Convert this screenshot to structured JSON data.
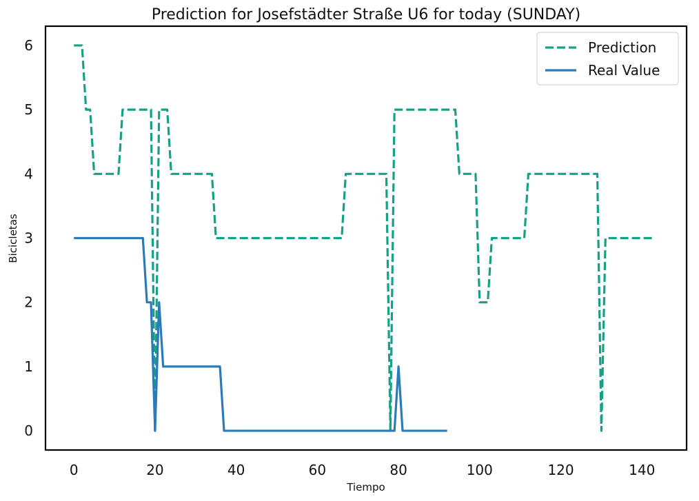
{
  "chart_data": {
    "type": "line",
    "title": "Prediction for Josefstädter Straße U6 for today (SUNDAY)",
    "xlabel": "Tiempo",
    "ylabel": "Bicicletas",
    "xlim": [
      -7,
      151
    ],
    "ylim": [
      -0.3,
      6.3
    ],
    "xticks": [
      0,
      20,
      40,
      60,
      80,
      100,
      120,
      140
    ],
    "yticks": [
      0,
      1,
      2,
      3,
      4,
      5,
      6
    ],
    "grid": false,
    "legend_position": "top-right",
    "series": [
      {
        "name": "Prediction",
        "color": "#16a085",
        "style": "dashed",
        "x": [
          0,
          1,
          2,
          3,
          4,
          5,
          6,
          7,
          8,
          9,
          10,
          11,
          12,
          13,
          14,
          15,
          16,
          17,
          18,
          19,
          20,
          21,
          22,
          23,
          24,
          25,
          26,
          27,
          28,
          29,
          30,
          31,
          32,
          33,
          34,
          35,
          36,
          37,
          38,
          39,
          40,
          41,
          42,
          43,
          44,
          45,
          46,
          47,
          48,
          49,
          50,
          51,
          52,
          53,
          54,
          55,
          56,
          57,
          58,
          59,
          60,
          61,
          62,
          63,
          64,
          65,
          66,
          67,
          68,
          69,
          70,
          71,
          72,
          73,
          74,
          75,
          76,
          77,
          78,
          79,
          80,
          81,
          82,
          83,
          84,
          85,
          86,
          87,
          88,
          89,
          90,
          91,
          92,
          93,
          94,
          95,
          96,
          97,
          98,
          99,
          100,
          101,
          102,
          103,
          104,
          105,
          106,
          107,
          108,
          109,
          110,
          111,
          112,
          113,
          114,
          115,
          116,
          117,
          118,
          119,
          120,
          121,
          122,
          123,
          124,
          125,
          126,
          127,
          128,
          129,
          130,
          131,
          132,
          133,
          134,
          135,
          136,
          137,
          138,
          139,
          140,
          141,
          142,
          143
        ],
        "values": [
          6,
          6,
          6,
          5,
          5,
          4,
          4,
          4,
          4,
          4,
          4,
          4,
          5,
          5,
          5,
          5,
          5,
          5,
          5,
          5,
          0,
          5,
          5,
          5,
          4,
          4,
          4,
          4,
          4,
          4,
          4,
          4,
          4,
          4,
          4,
          3,
          3,
          3,
          3,
          3,
          3,
          3,
          3,
          3,
          3,
          3,
          3,
          3,
          3,
          3,
          3,
          3,
          3,
          3,
          3,
          3,
          3,
          3,
          3,
          3,
          3,
          3,
          3,
          3,
          3,
          3,
          3,
          4,
          4,
          4,
          4,
          4,
          4,
          4,
          4,
          4,
          4,
          4,
          0,
          5,
          5,
          5,
          5,
          5,
          5,
          5,
          5,
          5,
          5,
          5,
          5,
          5,
          5,
          5,
          5,
          4,
          4,
          4,
          4,
          4,
          2,
          2,
          2,
          3,
          3,
          3,
          3,
          3,
          3,
          3,
          3,
          3,
          4,
          4,
          4,
          4,
          4,
          4,
          4,
          4,
          4,
          4,
          4,
          4,
          4,
          4,
          4,
          4,
          4,
          4,
          0,
          3,
          3,
          3,
          3,
          3,
          3,
          3,
          3,
          3,
          3,
          3,
          3,
          3
        ]
      },
      {
        "name": "Real Value",
        "color": "#2b7bb9",
        "style": "solid",
        "x": [
          0,
          1,
          2,
          3,
          4,
          5,
          6,
          7,
          8,
          9,
          10,
          11,
          12,
          13,
          14,
          15,
          16,
          17,
          18,
          19,
          20,
          21,
          22,
          23,
          24,
          25,
          26,
          27,
          28,
          29,
          30,
          31,
          32,
          33,
          34,
          35,
          36,
          37,
          38,
          39,
          40,
          41,
          42,
          43,
          44,
          45,
          46,
          47,
          48,
          49,
          50,
          51,
          52,
          53,
          54,
          55,
          56,
          57,
          58,
          59,
          60,
          61,
          62,
          63,
          64,
          65,
          66,
          67,
          68,
          69,
          70,
          71,
          72,
          73,
          74,
          75,
          76,
          77,
          78,
          79,
          80,
          81,
          82,
          83,
          84,
          85,
          86,
          87,
          88,
          89,
          90,
          91,
          92
        ],
        "values": [
          3,
          3,
          3,
          3,
          3,
          3,
          3,
          3,
          3,
          3,
          3,
          3,
          3,
          3,
          3,
          3,
          3,
          3,
          2,
          2,
          0,
          2,
          1,
          1,
          1,
          1,
          1,
          1,
          1,
          1,
          1,
          1,
          1,
          1,
          1,
          1,
          1,
          0,
          0,
          0,
          0,
          0,
          0,
          0,
          0,
          0,
          0,
          0,
          0,
          0,
          0,
          0,
          0,
          0,
          0,
          0,
          0,
          0,
          0,
          0,
          0,
          0,
          0,
          0,
          0,
          0,
          0,
          0,
          0,
          0,
          0,
          0,
          0,
          0,
          0,
          0,
          0,
          0,
          0,
          0,
          1,
          0,
          0,
          0,
          0,
          0,
          0,
          0,
          0,
          0,
          0,
          0,
          0
        ]
      }
    ]
  }
}
